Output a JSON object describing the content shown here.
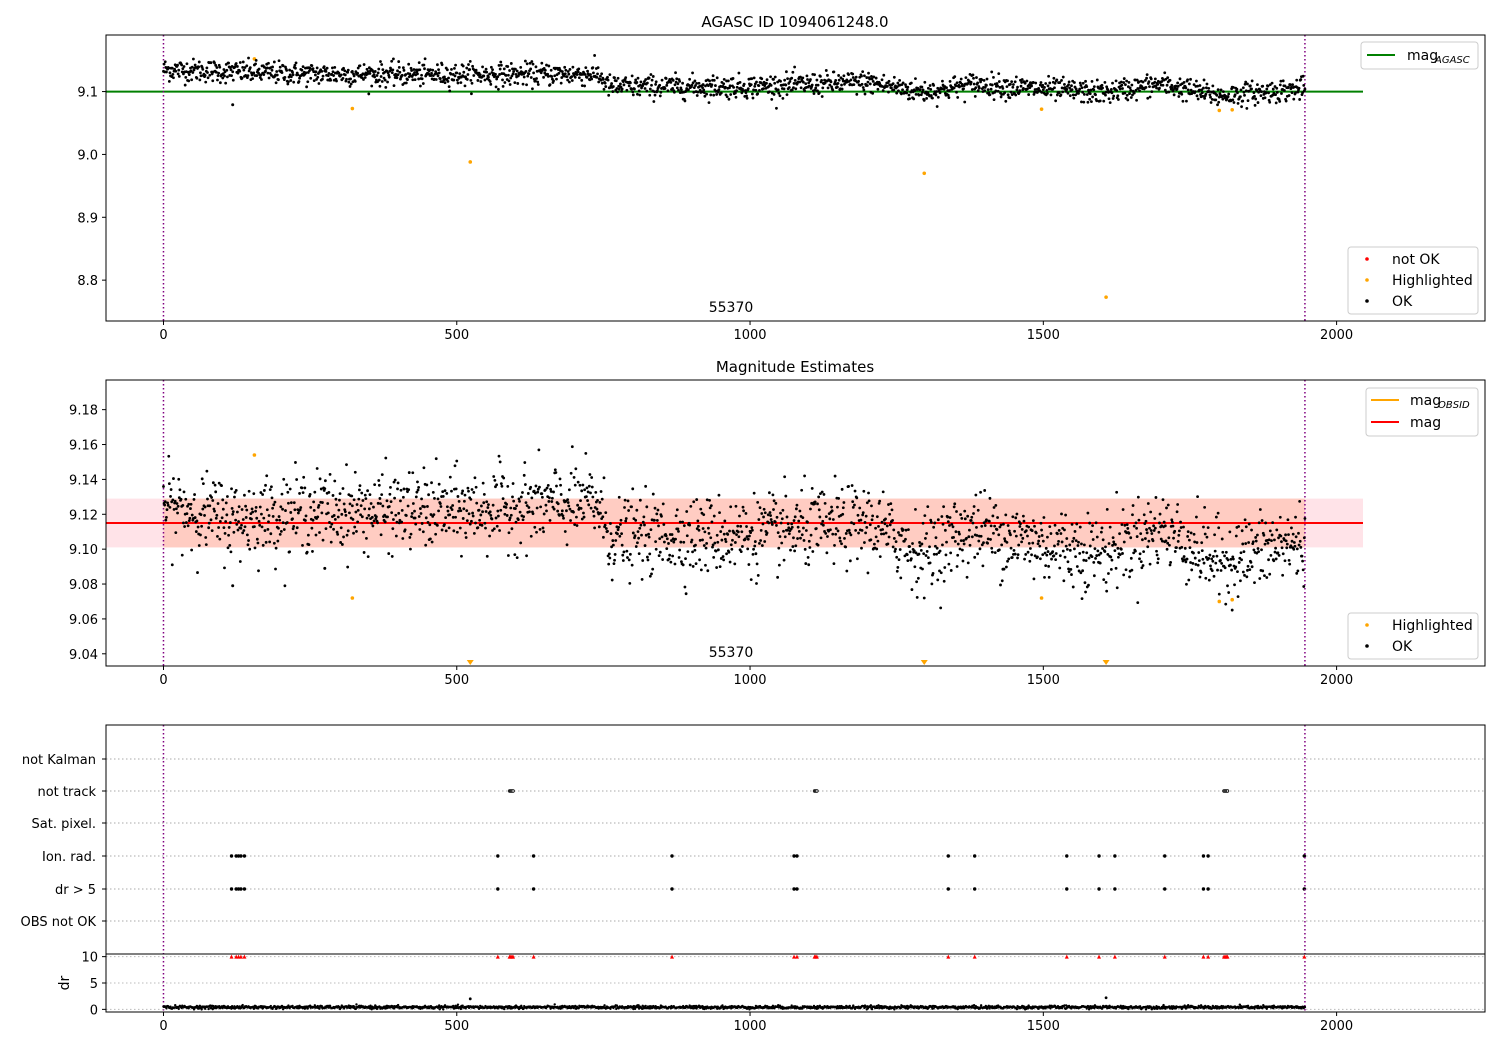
{
  "chart_data": [
    {
      "type": "scatter",
      "title": "AGASC ID 1094061248.0",
      "xlim": [
        -98,
        2253
      ],
      "ylim": [
        8.735,
        9.19
      ],
      "xticks": [
        0,
        500,
        1000,
        1500,
        2000
      ],
      "xtick_labels": [
        "0",
        "500",
        "1000",
        "1500",
        "2000"
      ],
      "yticks": [
        8.8,
        8.9,
        9.0,
        9.1
      ],
      "ytick_labels": [
        "8.8",
        "8.9",
        "9.0",
        "9.1"
      ],
      "annotation": "55370",
      "annotation_x": 972,
      "vlines": [
        0,
        1946
      ],
      "hlines": [
        {
          "name": "mag_AGASC",
          "y": 9.1,
          "x": [
            -98,
            2045
          ],
          "color": "#008000"
        }
      ],
      "series": [
        {
          "name": "not OK",
          "color": "#ff0000",
          "x": [],
          "y": []
        },
        {
          "name": "Highlighted",
          "color": "#ffa500",
          "x": [
            155,
            322,
            523,
            1297,
            1497,
            1607,
            1800,
            1822
          ],
          "y": [
            9.152,
            9.073,
            8.988,
            8.97,
            9.072,
            8.773,
            9.07,
            9.071
          ]
        },
        {
          "name": "OK",
          "color": "#000000",
          "x_range": [
            0,
            1946
          ],
          "y_profile": [
            [
              0,
              9.135
            ],
            [
              250,
              9.128
            ],
            [
              500,
              9.127
            ],
            [
              740,
              9.128
            ],
            [
              760,
              9.108
            ],
            [
              1000,
              9.108
            ],
            [
              1200,
              9.115
            ],
            [
              1290,
              9.1
            ],
            [
              1320,
              9.102
            ],
            [
              1380,
              9.112
            ],
            [
              1480,
              9.105
            ],
            [
              1600,
              9.098
            ],
            [
              1700,
              9.112
            ],
            [
              1800,
              9.093
            ],
            [
              1946,
              9.105
            ]
          ],
          "spread": 0.009,
          "outliers": [
            {
              "x": 118,
              "y": 9.079
            }
          ]
        }
      ],
      "legend_upper": [
        {
          "label": "mag",
          "sub": "AGASC",
          "color": "#008000"
        }
      ],
      "legend_lower": [
        {
          "label": "not OK",
          "color": "#ff0000"
        },
        {
          "label": "Highlighted",
          "color": "#ffa500"
        },
        {
          "label": "OK",
          "color": "#000000"
        }
      ]
    },
    {
      "type": "scatter",
      "title": "Magnitude Estimates",
      "xlim": [
        -98,
        2253
      ],
      "ylim": [
        9.033,
        9.197
      ],
      "xticks": [
        0,
        500,
        1000,
        1500,
        2000
      ],
      "xtick_labels": [
        "0",
        "500",
        "1000",
        "1500",
        "2000"
      ],
      "yticks": [
        9.04,
        9.06,
        9.08,
        9.1,
        9.12,
        9.14,
        9.16,
        9.18
      ],
      "ytick_labels": [
        "9.04",
        "9.06",
        "9.08",
        "9.10",
        "9.12",
        "9.14",
        "9.16",
        "9.18"
      ],
      "annotation": "55370",
      "annotation_x": 972,
      "vlines": [
        0,
        1946
      ],
      "band": {
        "y": [
          9.101,
          9.129
        ],
        "x": [
          -98,
          2045
        ],
        "color": "#ffc0cb"
      },
      "obs_band": {
        "y": [
          9.101,
          9.129
        ],
        "x": [
          0,
          1946
        ],
        "color": "#ffa07a"
      },
      "hlines": [
        {
          "name": "mag",
          "y": 9.115,
          "x": [
            -98,
            2045
          ],
          "color": "#ff0000"
        }
      ],
      "series": [
        {
          "name": "Highlighted",
          "color": "#ffa500",
          "x": [
            155,
            322,
            1497,
            1800,
            1822
          ],
          "y": [
            9.154,
            9.072,
            9.072,
            9.07,
            9.071
          ]
        },
        {
          "name": "Highlighted (below axis)",
          "color": "#ffa500",
          "marker": "triangle-down",
          "x": [
            523,
            1297,
            1607
          ],
          "y": [
            9.034,
            9.034,
            9.034
          ]
        },
        {
          "name": "OK",
          "color": "#000000",
          "x_range": [
            0,
            1946
          ],
          "y_profile": [
            [
              0,
              9.125
            ],
            [
              120,
              9.117
            ],
            [
              250,
              9.122
            ],
            [
              500,
              9.122
            ],
            [
              740,
              9.127
            ],
            [
              760,
              9.107
            ],
            [
              1000,
              9.108
            ],
            [
              1200,
              9.115
            ],
            [
              1290,
              9.098
            ],
            [
              1320,
              9.102
            ],
            [
              1380,
              9.112
            ],
            [
              1480,
              9.104
            ],
            [
              1600,
              9.098
            ],
            [
              1700,
              9.112
            ],
            [
              1800,
              9.093
            ],
            [
              1946,
              9.105
            ]
          ],
          "spread": 0.011,
          "outliers": [
            {
              "x": 118,
              "y": 9.079
            },
            {
              "x": 275,
              "y": 9.089
            }
          ]
        }
      ],
      "legend_upper": [
        {
          "label": "mag",
          "sub": "OBSID",
          "color": "#ffa500"
        },
        {
          "label": "mag",
          "sub": "",
          "color": "#ff0000"
        }
      ],
      "legend_lower": [
        {
          "label": "Highlighted",
          "color": "#ffa500"
        },
        {
          "label": "OK",
          "color": "#000000"
        }
      ]
    },
    {
      "type": "scatter",
      "title": "",
      "xlim": [
        -98,
        2253
      ],
      "categories": [
        "not Kalman",
        "not track",
        "Sat. pixel.",
        "Ion. rad.",
        "dr > 5",
        "OBS not OK"
      ],
      "flags": {
        "not Kalman": [],
        "not track": [
          590,
          592,
          594,
          596,
          1110,
          1112,
          1114,
          1808,
          1810,
          1812,
          1814
        ],
        "Sat. pixel.": [],
        "Ion. rad.": [
          116,
          124,
          128,
          132,
          138,
          570,
          631,
          867,
          1075,
          1080,
          1338,
          1383,
          1540,
          1595,
          1622,
          1707,
          1773,
          1781,
          1945
        ],
        "dr > 5": [
          116,
          124,
          128,
          132,
          138,
          570,
          631,
          867,
          1075,
          1080,
          1338,
          1383,
          1540,
          1595,
          1622,
          1707,
          1773,
          1781,
          1945
        ],
        "OBS not OK": []
      },
      "vlines": [
        0,
        1946
      ]
    },
    {
      "type": "scatter",
      "title": "",
      "xlim": [
        -98,
        2253
      ],
      "ylim": [
        -0.5,
        10.5
      ],
      "yticks": [
        0,
        5,
        10
      ],
      "ytick_labels": [
        "0",
        "5",
        "10"
      ],
      "ylabel": "dr",
      "xticks": [
        0,
        500,
        1000,
        1500,
        2000
      ],
      "xtick_labels": [
        "0",
        "500",
        "1000",
        "1500",
        "2000"
      ],
      "vlines": [
        0,
        1946
      ],
      "clipped_x": [
        116,
        124,
        128,
        132,
        138,
        570,
        590,
        592,
        594,
        596,
        631,
        867,
        1075,
        1080,
        1110,
        1112,
        1114,
        1338,
        1383,
        1540,
        1595,
        1622,
        1707,
        1773,
        1781,
        1808,
        1810,
        1812,
        1814,
        1945
      ],
      "dr_outliers": [
        {
          "x": 523,
          "y": 2.0
        },
        {
          "x": 1607,
          "y": 2.2
        }
      ],
      "dr_level": 0.4
    }
  ]
}
